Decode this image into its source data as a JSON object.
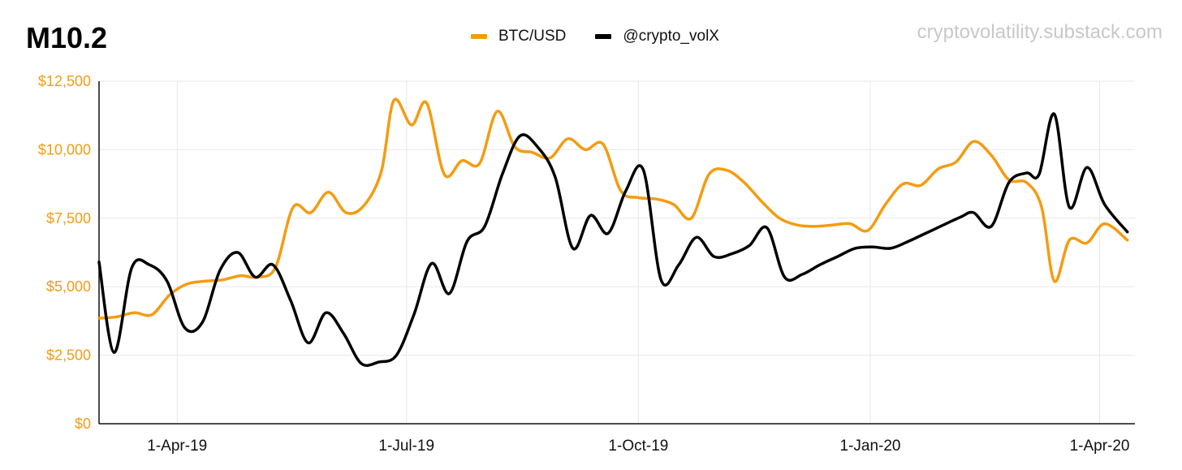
{
  "title": "M10.2",
  "watermark": "cryptovolatility.substack.com",
  "colors": {
    "btc": "#f39c12",
    "volx": "#000000",
    "grid": "#e8e8e8"
  },
  "chart_data": {
    "type": "line",
    "title": "M10.2",
    "legend_position": "top-center",
    "grid": true,
    "ylim": [
      0,
      12500
    ],
    "yticks": [
      0,
      2500,
      5000,
      7500,
      10000,
      12500
    ],
    "ytick_labels": [
      "$0",
      "$2,500",
      "$5,000",
      "$7,500",
      "$10,000",
      "$12,500"
    ],
    "xlim": [
      "2019-03-01",
      "2020-04-15"
    ],
    "xticks": [
      "2019-04-01",
      "2019-07-01",
      "2019-10-01",
      "2020-01-01",
      "2020-04-01"
    ],
    "xtick_labels": [
      "1-Apr-19",
      "1-Jul-19",
      "1-Oct-19",
      "1-Jan-20",
      "1-Apr-20"
    ],
    "series": [
      {
        "name": "BTC/USD",
        "color": "#f39c12",
        "points": [
          [
            "2019-03-01",
            3850
          ],
          [
            "2019-03-08",
            3900
          ],
          [
            "2019-03-15",
            4050
          ],
          [
            "2019-03-22",
            3980
          ],
          [
            "2019-03-29",
            4700
          ],
          [
            "2019-04-05",
            5100
          ],
          [
            "2019-04-12",
            5200
          ],
          [
            "2019-04-19",
            5250
          ],
          [
            "2019-04-26",
            5400
          ],
          [
            "2019-05-03",
            5350
          ],
          [
            "2019-05-10",
            5700
          ],
          [
            "2019-05-17",
            7900
          ],
          [
            "2019-05-24",
            7700
          ],
          [
            "2019-05-31",
            8450
          ],
          [
            "2019-06-07",
            7700
          ],
          [
            "2019-06-14",
            7950
          ],
          [
            "2019-06-21",
            9200
          ],
          [
            "2019-06-26",
            11800
          ],
          [
            "2019-07-03",
            10900
          ],
          [
            "2019-07-09",
            11700
          ],
          [
            "2019-07-16",
            9100
          ],
          [
            "2019-07-23",
            9600
          ],
          [
            "2019-07-30",
            9500
          ],
          [
            "2019-08-06",
            11400
          ],
          [
            "2019-08-13",
            10100
          ],
          [
            "2019-08-20",
            9900
          ],
          [
            "2019-08-27",
            9700
          ],
          [
            "2019-09-03",
            10400
          ],
          [
            "2019-09-10",
            10000
          ],
          [
            "2019-09-17",
            10200
          ],
          [
            "2019-09-24",
            8500
          ],
          [
            "2019-10-01",
            8250
          ],
          [
            "2019-10-08",
            8200
          ],
          [
            "2019-10-15",
            8000
          ],
          [
            "2019-10-22",
            7500
          ],
          [
            "2019-10-29",
            9100
          ],
          [
            "2019-11-05",
            9250
          ],
          [
            "2019-11-12",
            8800
          ],
          [
            "2019-11-19",
            8100
          ],
          [
            "2019-11-26",
            7500
          ],
          [
            "2019-12-03",
            7250
          ],
          [
            "2019-12-10",
            7200
          ],
          [
            "2019-12-17",
            7250
          ],
          [
            "2019-12-24",
            7300
          ],
          [
            "2019-12-31",
            7050
          ],
          [
            "2020-01-07",
            8000
          ],
          [
            "2020-01-14",
            8750
          ],
          [
            "2020-01-21",
            8700
          ],
          [
            "2020-01-28",
            9300
          ],
          [
            "2020-02-04",
            9550
          ],
          [
            "2020-02-11",
            10300
          ],
          [
            "2020-02-18",
            9800
          ],
          [
            "2020-02-25",
            8900
          ],
          [
            "2020-03-03",
            8800
          ],
          [
            "2020-03-09",
            7900
          ],
          [
            "2020-03-14",
            5200
          ],
          [
            "2020-03-20",
            6700
          ],
          [
            "2020-03-27",
            6600
          ],
          [
            "2020-04-03",
            7300
          ],
          [
            "2020-04-12",
            6700
          ]
        ]
      },
      {
        "name": "@crypto_volX",
        "color": "#000000",
        "points": [
          [
            "2019-03-01",
            5900
          ],
          [
            "2019-03-07",
            2600
          ],
          [
            "2019-03-14",
            5700
          ],
          [
            "2019-03-21",
            5800
          ],
          [
            "2019-03-28",
            5200
          ],
          [
            "2019-04-04",
            3500
          ],
          [
            "2019-04-11",
            3700
          ],
          [
            "2019-04-18",
            5600
          ],
          [
            "2019-04-25",
            6250
          ],
          [
            "2019-05-02",
            5350
          ],
          [
            "2019-05-09",
            5800
          ],
          [
            "2019-05-16",
            4500
          ],
          [
            "2019-05-23",
            2950
          ],
          [
            "2019-05-30",
            4050
          ],
          [
            "2019-06-06",
            3300
          ],
          [
            "2019-06-13",
            2200
          ],
          [
            "2019-06-20",
            2250
          ],
          [
            "2019-06-27",
            2500
          ],
          [
            "2019-07-04",
            4000
          ],
          [
            "2019-07-11",
            5850
          ],
          [
            "2019-07-18",
            4750
          ],
          [
            "2019-07-25",
            6650
          ],
          [
            "2019-08-01",
            7200
          ],
          [
            "2019-08-08",
            9100
          ],
          [
            "2019-08-15",
            10500
          ],
          [
            "2019-08-22",
            10100
          ],
          [
            "2019-08-29",
            9000
          ],
          [
            "2019-09-05",
            6400
          ],
          [
            "2019-09-12",
            7600
          ],
          [
            "2019-09-19",
            6950
          ],
          [
            "2019-09-26",
            8500
          ],
          [
            "2019-10-03",
            9250
          ],
          [
            "2019-10-10",
            5250
          ],
          [
            "2019-10-17",
            5800
          ],
          [
            "2019-10-24",
            6800
          ],
          [
            "2019-10-31",
            6100
          ],
          [
            "2019-11-07",
            6200
          ],
          [
            "2019-11-14",
            6500
          ],
          [
            "2019-11-21",
            7150
          ],
          [
            "2019-11-28",
            5350
          ],
          [
            "2019-12-05",
            5450
          ],
          [
            "2019-12-12",
            5800
          ],
          [
            "2019-12-19",
            6100
          ],
          [
            "2019-12-26",
            6400
          ],
          [
            "2020-01-02",
            6450
          ],
          [
            "2020-01-09",
            6400
          ],
          [
            "2020-01-16",
            6650
          ],
          [
            "2020-01-23",
            6950
          ],
          [
            "2020-01-30",
            7250
          ],
          [
            "2020-02-06",
            7550
          ],
          [
            "2020-02-11",
            7700
          ],
          [
            "2020-02-18",
            7200
          ],
          [
            "2020-02-25",
            8800
          ],
          [
            "2020-03-03",
            9150
          ],
          [
            "2020-03-08",
            9100
          ],
          [
            "2020-03-14",
            11300
          ],
          [
            "2020-03-20",
            7900
          ],
          [
            "2020-03-27",
            9350
          ],
          [
            "2020-04-03",
            8000
          ],
          [
            "2020-04-12",
            7000
          ]
        ]
      }
    ]
  }
}
